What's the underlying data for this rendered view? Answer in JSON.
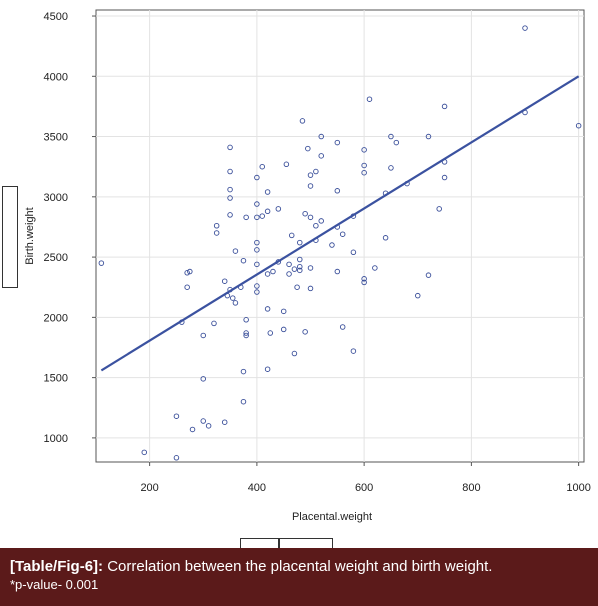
{
  "chart_data": {
    "type": "scatter",
    "xlabel": "Placental.weight",
    "ylabel": "Birth.weight",
    "xlim": [
      100,
      1010
    ],
    "ylim": [
      800,
      4550
    ],
    "xticks": [
      200,
      400,
      600,
      800,
      1000
    ],
    "yticks": [
      1000,
      1500,
      2000,
      2500,
      3000,
      3500,
      4000,
      4500
    ],
    "grid": true,
    "regression_line": {
      "x": [
        110,
        1000
      ],
      "y": [
        1560,
        4000
      ]
    },
    "points": [
      [
        110,
        2450
      ],
      [
        190,
        880
      ],
      [
        250,
        835
      ],
      [
        250,
        1180
      ],
      [
        260,
        1960
      ],
      [
        270,
        2250
      ],
      [
        270,
        2370
      ],
      [
        275,
        2380
      ],
      [
        280,
        1070
      ],
      [
        300,
        1140
      ],
      [
        300,
        1490
      ],
      [
        300,
        1850
      ],
      [
        310,
        1100
      ],
      [
        320,
        1950
      ],
      [
        325,
        2700
      ],
      [
        325,
        2760
      ],
      [
        340,
        1130
      ],
      [
        340,
        2300
      ],
      [
        345,
        2180
      ],
      [
        350,
        2230
      ],
      [
        350,
        2850
      ],
      [
        350,
        2990
      ],
      [
        350,
        3060
      ],
      [
        350,
        3210
      ],
      [
        350,
        3410
      ],
      [
        355,
        2160
      ],
      [
        360,
        2550
      ],
      [
        360,
        2120
      ],
      [
        370,
        2250
      ],
      [
        375,
        1550
      ],
      [
        375,
        1300
      ],
      [
        375,
        2470
      ],
      [
        380,
        1850
      ],
      [
        380,
        1870
      ],
      [
        380,
        1980
      ],
      [
        380,
        2830
      ],
      [
        400,
        2210
      ],
      [
        400,
        2260
      ],
      [
        400,
        2440
      ],
      [
        400,
        2560
      ],
      [
        400,
        2620
      ],
      [
        400,
        2830
      ],
      [
        400,
        2940
      ],
      [
        400,
        3160
      ],
      [
        410,
        2840
      ],
      [
        410,
        3250
      ],
      [
        420,
        1570
      ],
      [
        420,
        2070
      ],
      [
        420,
        2360
      ],
      [
        420,
        2880
      ],
      [
        420,
        3040
      ],
      [
        425,
        1870
      ],
      [
        430,
        2380
      ],
      [
        440,
        2460
      ],
      [
        440,
        2900
      ],
      [
        450,
        1900
      ],
      [
        450,
        2050
      ],
      [
        455,
        3270
      ],
      [
        460,
        2360
      ],
      [
        460,
        2440
      ],
      [
        465,
        2680
      ],
      [
        470,
        1700
      ],
      [
        470,
        2400
      ],
      [
        475,
        2250
      ],
      [
        480,
        2390
      ],
      [
        480,
        2420
      ],
      [
        480,
        2480
      ],
      [
        480,
        2620
      ],
      [
        485,
        3630
      ],
      [
        490,
        2860
      ],
      [
        490,
        1880
      ],
      [
        495,
        3400
      ],
      [
        500,
        2240
      ],
      [
        500,
        2410
      ],
      [
        500,
        2830
      ],
      [
        500,
        3090
      ],
      [
        500,
        3180
      ],
      [
        510,
        2640
      ],
      [
        510,
        2760
      ],
      [
        510,
        3210
      ],
      [
        520,
        2800
      ],
      [
        520,
        3500
      ],
      [
        520,
        3340
      ],
      [
        540,
        2600
      ],
      [
        550,
        2380
      ],
      [
        550,
        3050
      ],
      [
        550,
        3450
      ],
      [
        550,
        2750
      ],
      [
        560,
        1920
      ],
      [
        560,
        2690
      ],
      [
        580,
        1720
      ],
      [
        580,
        2540
      ],
      [
        580,
        2840
      ],
      [
        600,
        2290
      ],
      [
        600,
        2320
      ],
      [
        600,
        3200
      ],
      [
        600,
        3260
      ],
      [
        600,
        3390
      ],
      [
        610,
        3810
      ],
      [
        620,
        2410
      ],
      [
        640,
        2660
      ],
      [
        640,
        3030
      ],
      [
        650,
        3240
      ],
      [
        650,
        3500
      ],
      [
        660,
        3450
      ],
      [
        680,
        3110
      ],
      [
        700,
        2180
      ],
      [
        720,
        2350
      ],
      [
        720,
        3500
      ],
      [
        740,
        2900
      ],
      [
        750,
        3160
      ],
      [
        750,
        3290
      ],
      [
        750,
        3750
      ],
      [
        900,
        4400
      ],
      [
        900,
        3700
      ],
      [
        1000,
        3590
      ]
    ]
  },
  "caption": {
    "tag": "[Table/Fig-6]:",
    "text": "Correlation between the placental weight and birth weight.",
    "note": "*p-value- 0.001"
  },
  "colors": {
    "point": "#3a4f9a",
    "line": "#3b52a0",
    "grid": "#e3e3e3",
    "caption_bg": "#5b1a1a"
  }
}
